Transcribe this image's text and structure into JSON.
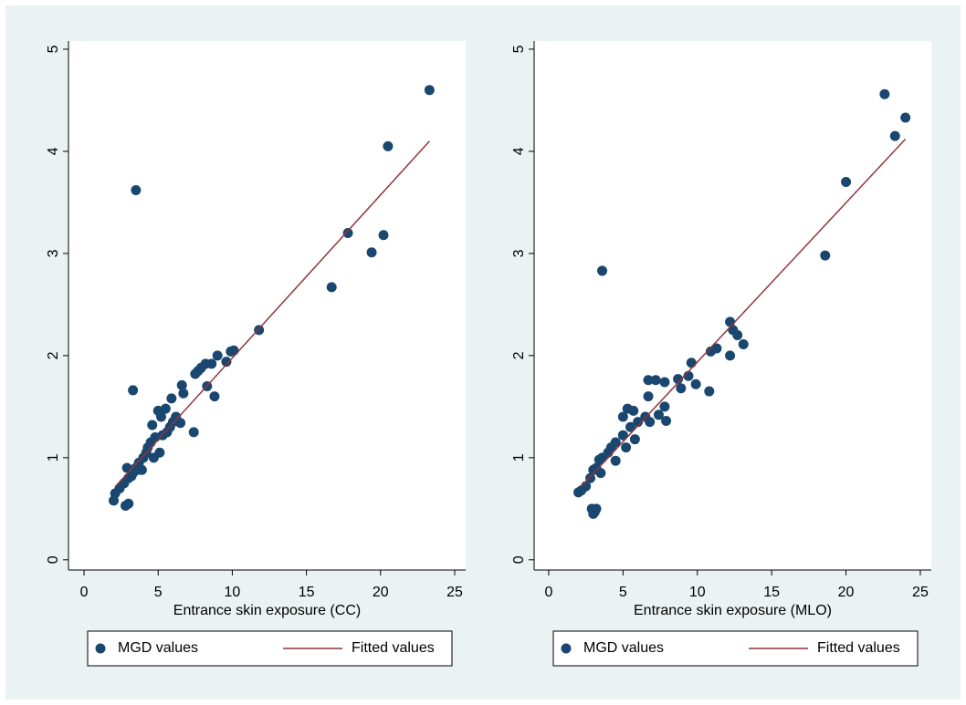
{
  "chart_data": [
    {
      "type": "scatter",
      "xlabel": "Entrance skin exposure (CC)",
      "xlim": [
        -1.05,
        25.74
      ],
      "ylim": [
        -0.1,
        5.08
      ],
      "xticks": [
        0,
        5,
        10,
        15,
        20,
        25
      ],
      "yticks": [
        0,
        1,
        2,
        3,
        4,
        5
      ],
      "grid": false,
      "legend": "bottom",
      "series": [
        {
          "name": "MGD values",
          "mode": "markers",
          "color": "#1a476f",
          "x": [
            23.3,
            20.5,
            3.5,
            17.8,
            20.2,
            19.4,
            16.7,
            11.8,
            10.1,
            9.9,
            9.6,
            9.0,
            8.6,
            8.2,
            7.9,
            7.7,
            7.5,
            8.3,
            8.8,
            7.4,
            6.6,
            6.7,
            5.9,
            3.3,
            5.0,
            5.5,
            5.2,
            4.6,
            6.2,
            6.5,
            5.8,
            5.6,
            5.1,
            4.5,
            4.2,
            4.0,
            3.7,
            3.5,
            3.3,
            3.0,
            2.7,
            2.4,
            2.1,
            2.0,
            2.8,
            3.0,
            3.6,
            4.3,
            4.8,
            5.3,
            3.9,
            3.2,
            2.9,
            6.0,
            4.7
          ],
          "values": [
            4.6,
            4.05,
            3.62,
            3.2,
            3.18,
            3.01,
            2.67,
            2.25,
            2.05,
            2.04,
            1.94,
            2.0,
            1.92,
            1.92,
            1.88,
            1.85,
            1.82,
            1.7,
            1.6,
            1.25,
            1.71,
            1.63,
            1.58,
            1.66,
            1.46,
            1.48,
            1.4,
            1.32,
            1.4,
            1.34,
            1.3,
            1.25,
            1.05,
            1.15,
            1.05,
            1.0,
            0.95,
            0.9,
            0.85,
            0.8,
            0.75,
            0.7,
            0.65,
            0.58,
            0.53,
            0.55,
            0.88,
            1.1,
            1.2,
            1.22,
            0.88,
            0.82,
            0.9,
            1.35,
            1.0
          ]
        },
        {
          "name": "Fitted values",
          "mode": "line",
          "color": "#90353b",
          "x": [
            2.2,
            23.3
          ],
          "values": [
            0.73,
            4.1
          ]
        }
      ]
    },
    {
      "type": "scatter",
      "xlabel": "Entrance skin exposure (MLO)",
      "xlim": [
        -0.98,
        25.74
      ],
      "ylim": [
        -0.1,
        5.08
      ],
      "xticks": [
        0,
        5,
        10,
        15,
        20,
        25
      ],
      "yticks": [
        0,
        1,
        2,
        3,
        4,
        5
      ],
      "grid": false,
      "legend": "bottom",
      "series": [
        {
          "name": "MGD values",
          "mode": "markers",
          "color": "#1a476f",
          "x": [
            22.6,
            24.0,
            23.3,
            20.0,
            3.6,
            18.6,
            12.2,
            12.4,
            12.7,
            13.1,
            12.2,
            11.3,
            10.9,
            10.8,
            9.6,
            9.9,
            9.4,
            8.7,
            8.9,
            6.7,
            7.2,
            7.8,
            6.7,
            5.3,
            5.7,
            5.0,
            7.9,
            7.8,
            6.5,
            6.0,
            5.5,
            5.0,
            4.5,
            4.2,
            4.0,
            3.6,
            3.4,
            3.2,
            3.0,
            2.8,
            2.5,
            2.2,
            2.0,
            2.9,
            3.1,
            3.0,
            3.2,
            4.5,
            5.2,
            5.8,
            3.5,
            6.8,
            7.4
          ],
          "values": [
            4.56,
            4.33,
            4.15,
            3.7,
            2.83,
            2.98,
            2.33,
            2.25,
            2.2,
            2.11,
            2.0,
            2.07,
            2.04,
            1.65,
            1.93,
            1.72,
            1.8,
            1.77,
            1.68,
            1.76,
            1.76,
            1.74,
            1.6,
            1.48,
            1.46,
            1.4,
            1.36,
            1.5,
            1.4,
            1.35,
            1.3,
            1.22,
            1.15,
            1.1,
            1.05,
            1.0,
            0.98,
            0.9,
            0.88,
            0.8,
            0.72,
            0.68,
            0.66,
            0.5,
            0.47,
            0.45,
            0.5,
            0.97,
            1.1,
            1.18,
            0.85,
            1.35,
            1.42
          ]
        },
        {
          "name": "Fitted values",
          "mode": "line",
          "color": "#90353b",
          "x": [
            2.2,
            24.0
          ],
          "values": [
            0.72,
            4.12
          ]
        }
      ]
    }
  ]
}
